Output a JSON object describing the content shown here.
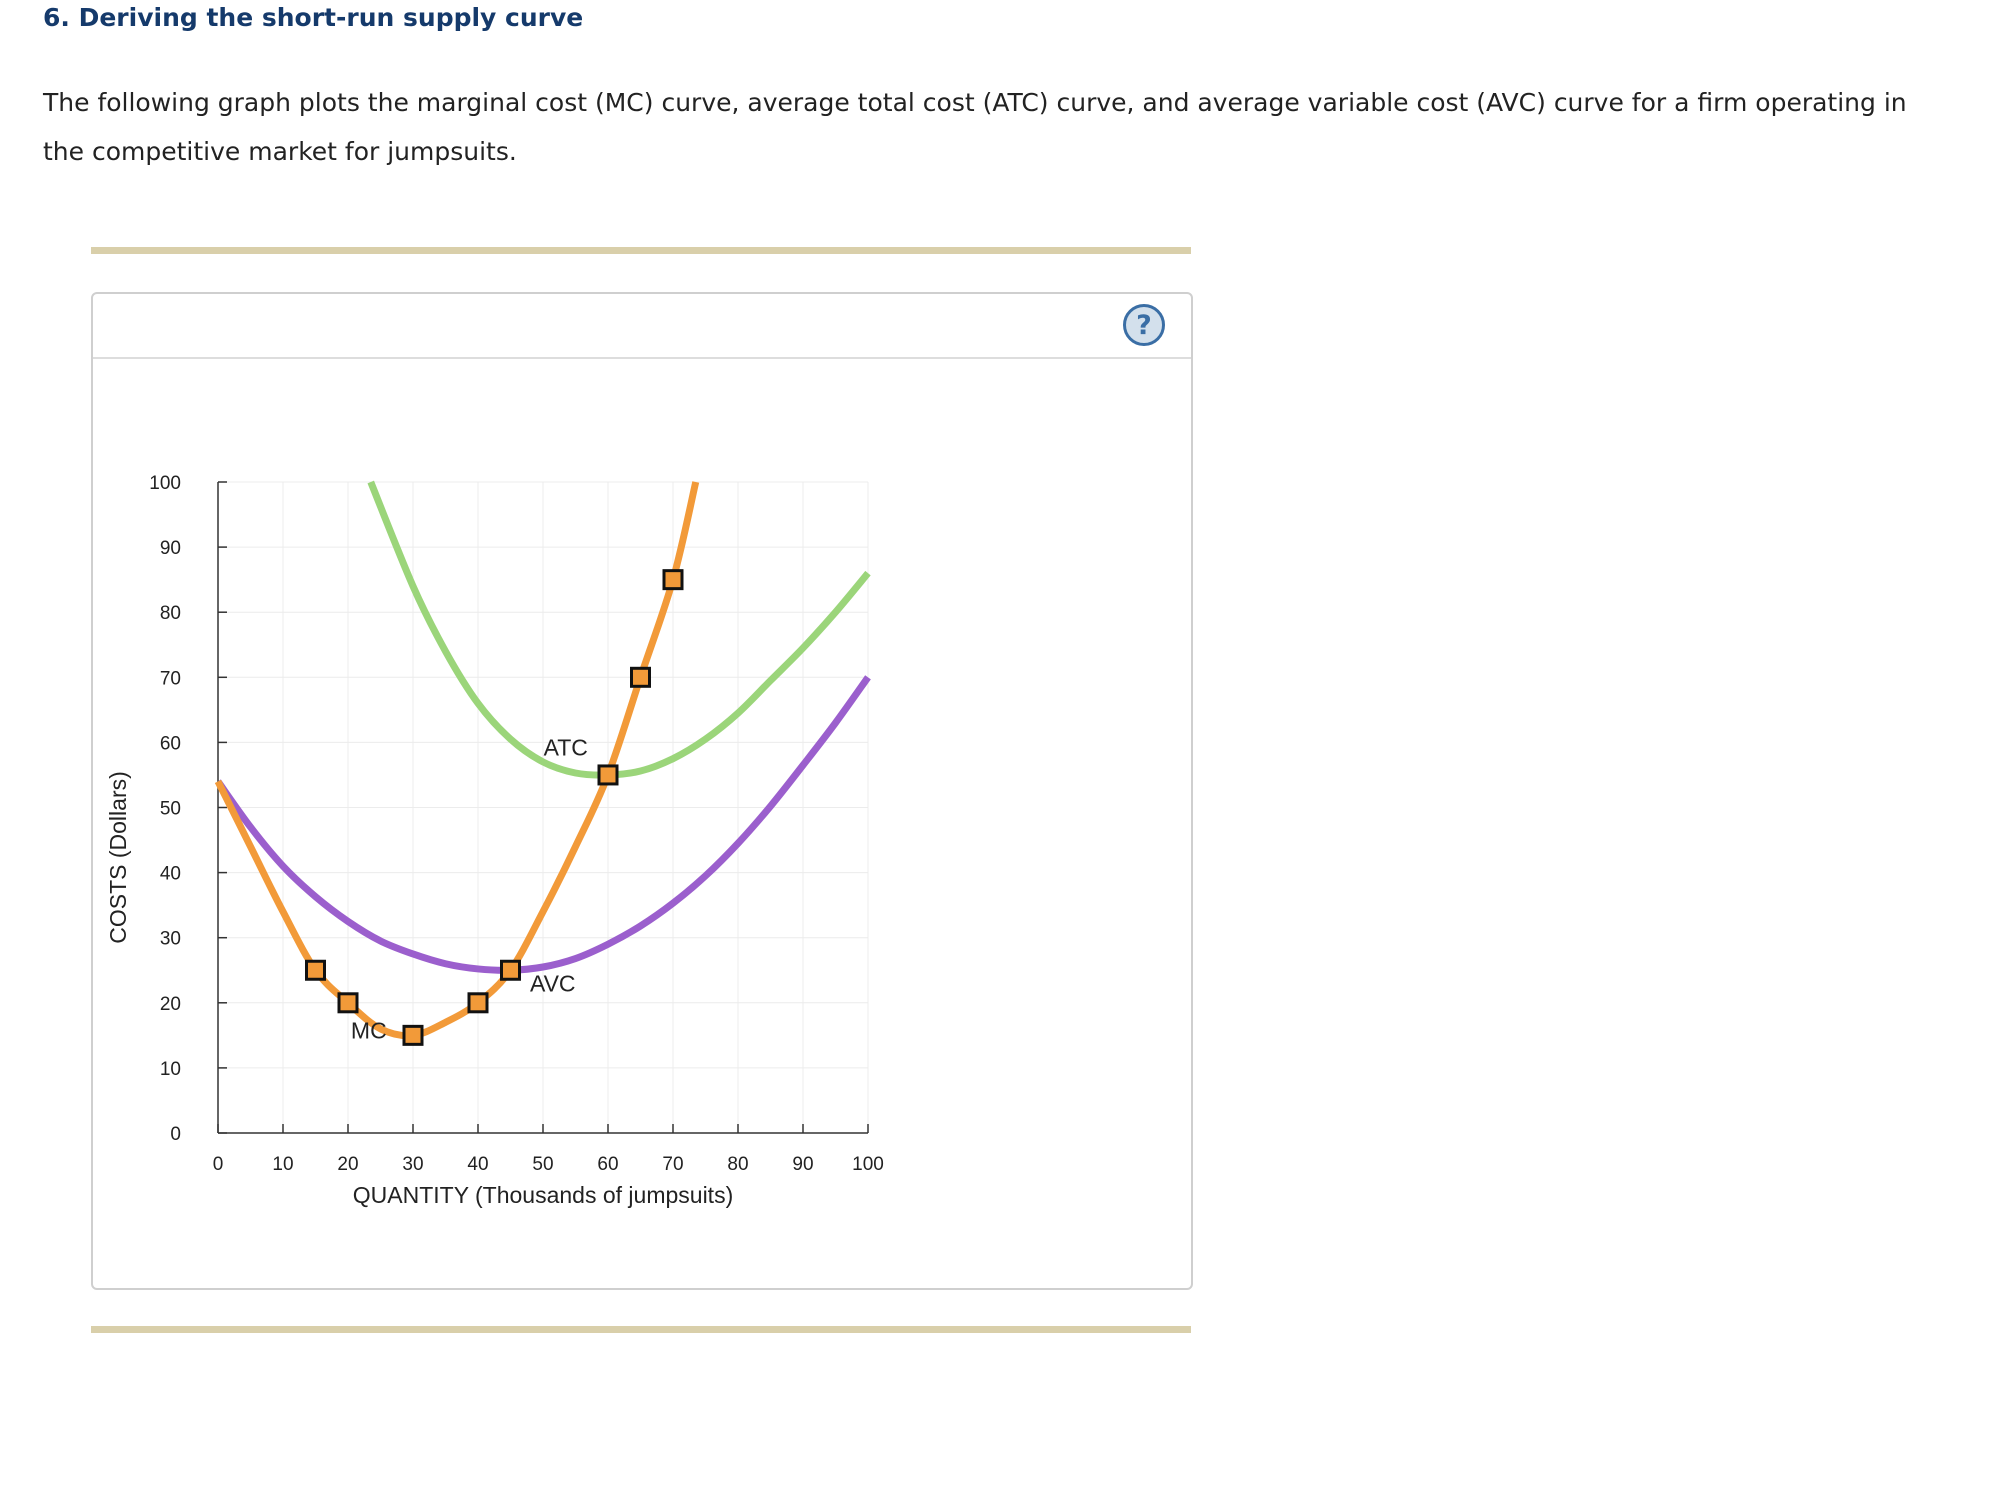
{
  "question": {
    "heading": "6. Deriving the short-run supply curve",
    "intro": "The following graph plots the marginal cost (MC) curve, average total cost (ATC) curve, and average variable cost (AVC) curve for a firm operating in the competitive market for jumpsuits."
  },
  "help_icon": "question-mark-icon",
  "help_symbol": "?",
  "colors": {
    "heading": "#153a6b",
    "rule": "#d9cfaa",
    "mc": "#f29a39",
    "atc": "#9bd57a",
    "avc": "#9b5fcd",
    "marker_fill": "#f29a39",
    "marker_stroke": "#111111",
    "grid": "#ececec",
    "axis": "#333333"
  },
  "chart_data": {
    "type": "line",
    "xlabel": "QUANTITY (Thousands of jumpsuits)",
    "ylabel": "COSTS (Dollars)",
    "xlim": [
      0,
      100
    ],
    "ylim": [
      0,
      100
    ],
    "x_ticks": [
      0,
      10,
      20,
      30,
      40,
      50,
      60,
      70,
      80,
      90,
      100
    ],
    "y_ticks": [
      0,
      10,
      20,
      30,
      40,
      50,
      60,
      70,
      80,
      90,
      100
    ],
    "grid": true,
    "series": [
      {
        "name": "MC",
        "color": "#f29a39",
        "x": [
          0,
          5,
          10,
          15,
          20,
          25,
          30,
          35,
          40,
          45,
          50,
          55,
          60,
          65,
          70,
          73.5
        ],
        "y": [
          54,
          44,
          34,
          25,
          20,
          16,
          15,
          17,
          20,
          25,
          34,
          44,
          55,
          70,
          85,
          100
        ]
      },
      {
        "name": "ATC",
        "color": "#9bd57a",
        "x": [
          23.5,
          30,
          35,
          40,
          45,
          50,
          55,
          60,
          65,
          70,
          75,
          80,
          85,
          90,
          95,
          100
        ],
        "y": [
          100,
          84,
          74,
          66,
          60.5,
          57,
          55.3,
          55,
          55.6,
          57.5,
          60.5,
          64.5,
          69.5,
          74.5,
          80,
          86
        ]
      },
      {
        "name": "AVC",
        "color": "#9b5fcd",
        "x": [
          0,
          5,
          10,
          15,
          20,
          25,
          30,
          35,
          40,
          45,
          50,
          55,
          60,
          65,
          70,
          75,
          80,
          85,
          90,
          95,
          100
        ],
        "y": [
          54,
          47,
          41,
          36.3,
          32.5,
          29.5,
          27.5,
          26,
          25.2,
          25,
          25.5,
          26.8,
          29,
          31.8,
          35.3,
          39.5,
          44.5,
          50.2,
          56.5,
          63,
          70
        ]
      }
    ],
    "markers": [
      {
        "x": 15,
        "y": 25
      },
      {
        "x": 20,
        "y": 20
      },
      {
        "x": 30,
        "y": 15
      },
      {
        "x": 40,
        "y": 20
      },
      {
        "x": 45,
        "y": 25
      },
      {
        "x": 60,
        "y": 55
      },
      {
        "x": 65,
        "y": 70
      },
      {
        "x": 70,
        "y": 85
      }
    ],
    "curve_labels": [
      {
        "text": "ATC",
        "x": 53.5,
        "y": 58
      },
      {
        "text": "AVC",
        "x": 51.5,
        "y": 21.7
      },
      {
        "text": "MC",
        "x": 23.2,
        "y": 14.5
      }
    ]
  }
}
